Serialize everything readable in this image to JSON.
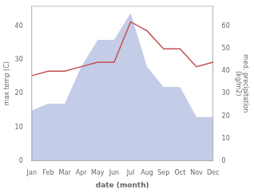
{
  "chart_data": {
    "type": "line",
    "categories": [
      "Jan",
      "Feb",
      "Mar",
      "Apr",
      "May",
      "Jun",
      "Jul",
      "Aug",
      "Sep",
      "Oct",
      "Nov",
      "Dec"
    ],
    "series": [
      {
        "type": "area",
        "color": "#c5cce8",
        "values": [
          15,
          17,
          17,
          28,
          36,
          36,
          44,
          28,
          22,
          22,
          13,
          13
        ]
      },
      {
        "type": "line",
        "color": "#c0504d",
        "axis": "y2",
        "values": [
          38,
          40,
          40,
          42,
          44,
          44,
          62,
          58,
          50,
          50,
          42,
          44
        ]
      }
    ],
    "xlabel": "date (month)",
    "ylabel": "max temp (C)",
    "y2label": "med. precipitation\n(kg/m2)",
    "ylim": [
      0,
      46
    ],
    "yticks": [
      0,
      10,
      20,
      30,
      40
    ],
    "y2lim": [
      0,
      69
    ],
    "y2ticks": [
      0,
      10,
      20,
      30,
      40,
      50,
      60
    ],
    "grid": false
  }
}
